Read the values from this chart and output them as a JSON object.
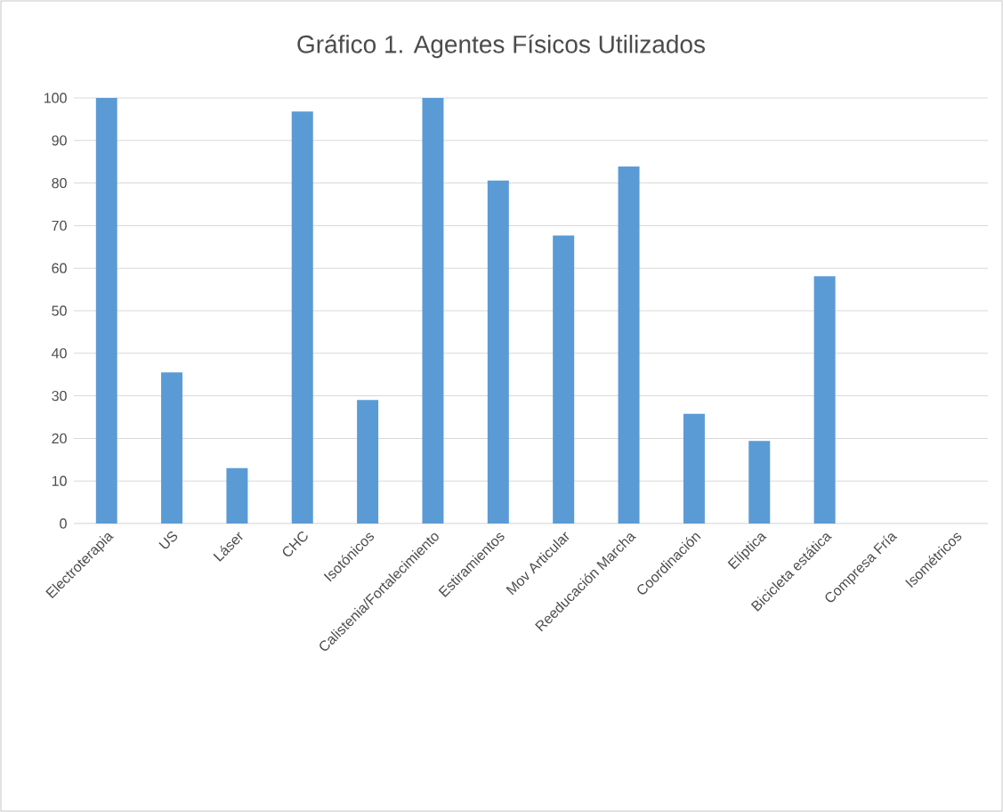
{
  "chart_data": {
    "type": "bar",
    "title": "Gráfico 1. Agentes Físicos Utilizados",
    "categories": [
      "Electroterapia",
      "US",
      "Láser",
      "CHC",
      "Isotónicos",
      "Calistenia/Fortalecimiento",
      "Estiramientos",
      "Mov Articular",
      "Reeducación Marcha",
      "Coordinación",
      "Elíptica",
      "Bicicleta estática",
      "Compresa Fría",
      "Isométricos"
    ],
    "values": [
      100,
      35.5,
      13,
      96.8,
      29,
      100,
      80.6,
      67.7,
      83.9,
      25.8,
      19.4,
      58.1,
      0,
      0
    ],
    "color": "#5b9bd5",
    "ylim": [
      0,
      100
    ],
    "yticks": [
      0,
      10,
      20,
      30,
      40,
      50,
      60,
      70,
      80,
      90,
      100
    ],
    "grid": "y"
  }
}
